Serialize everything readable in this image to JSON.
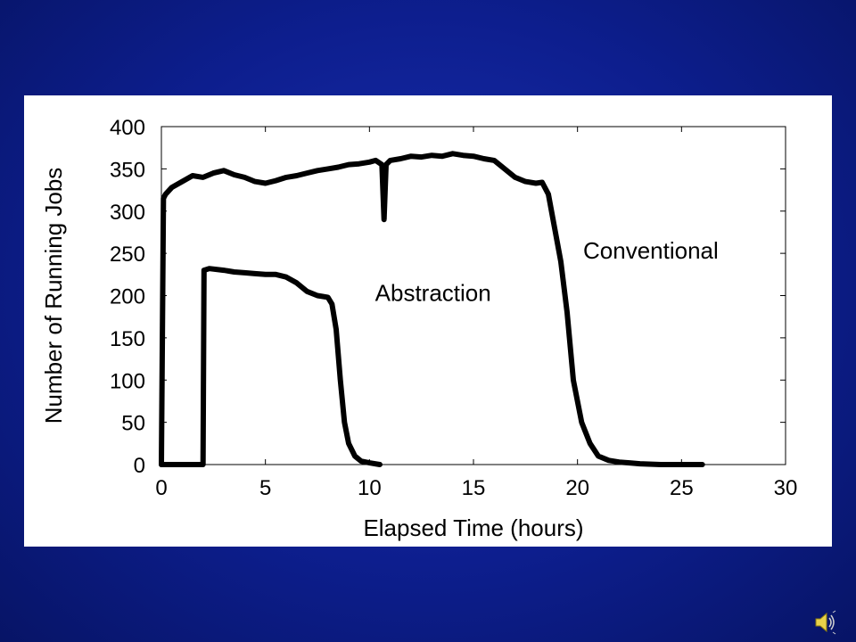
{
  "slide": {
    "background_color": "#0d1e8e",
    "audio_icon": "speaker-icon"
  },
  "chart_data": {
    "type": "line",
    "title": "",
    "xlabel": "Elapsed Time (hours)",
    "ylabel": "Number of Running Jobs",
    "xlim": [
      0,
      30
    ],
    "ylim": [
      0,
      400
    ],
    "xticks": [
      "0",
      "5",
      "10",
      "15",
      "20",
      "25",
      "30"
    ],
    "yticks": [
      "0",
      "50",
      "100",
      "150",
      "200",
      "250",
      "300",
      "350",
      "400"
    ],
    "grid": false,
    "legend": "none (series labeled inline)",
    "series": [
      {
        "name": "Conventional",
        "color": "#000000",
        "x": [
          0,
          0.1,
          0.2,
          0.5,
          1,
          1.5,
          2,
          2.5,
          3,
          3.5,
          4,
          4.5,
          5,
          5.5,
          6,
          6.5,
          7,
          7.5,
          8,
          8.5,
          9,
          9.5,
          10,
          10.3,
          10.6,
          10.7,
          10.8,
          11,
          11.5,
          12,
          12.5,
          13,
          13.5,
          14,
          14.5,
          15,
          15.5,
          16,
          16.5,
          17,
          17.5,
          18,
          18.3,
          18.6,
          18.9,
          19.2,
          19.5,
          19.8,
          20.2,
          20.6,
          21,
          21.5,
          22,
          22.5,
          23,
          24,
          25,
          26
        ],
        "values": [
          0,
          315,
          320,
          328,
          335,
          342,
          340,
          345,
          348,
          343,
          340,
          335,
          333,
          336,
          340,
          342,
          345,
          348,
          350,
          352,
          355,
          356,
          358,
          360,
          355,
          290,
          355,
          360,
          362,
          365,
          364,
          366,
          365,
          368,
          366,
          365,
          362,
          360,
          350,
          340,
          335,
          333,
          334,
          320,
          280,
          240,
          180,
          100,
          50,
          25,
          10,
          5,
          3,
          2,
          1,
          0,
          0,
          0
        ]
      },
      {
        "name": "Abstraction",
        "color": "#000000",
        "x": [
          0,
          1.9,
          2.0,
          2.05,
          2.3,
          3,
          3.5,
          4,
          4.5,
          5,
          5.5,
          6,
          6.5,
          7,
          7.5,
          8,
          8.2,
          8.4,
          8.6,
          8.8,
          9,
          9.3,
          9.6,
          10,
          10.5
        ],
        "values": [
          0,
          0,
          0,
          230,
          232,
          230,
          228,
          227,
          226,
          225,
          225,
          222,
          215,
          205,
          200,
          198,
          190,
          160,
          100,
          50,
          25,
          10,
          4,
          2,
          0
        ]
      }
    ],
    "annotations": [
      {
        "text": "Conventional",
        "x": 19.5,
        "y": 250
      },
      {
        "text": "Abstraction",
        "x": 9.5,
        "y": 200
      }
    ]
  }
}
